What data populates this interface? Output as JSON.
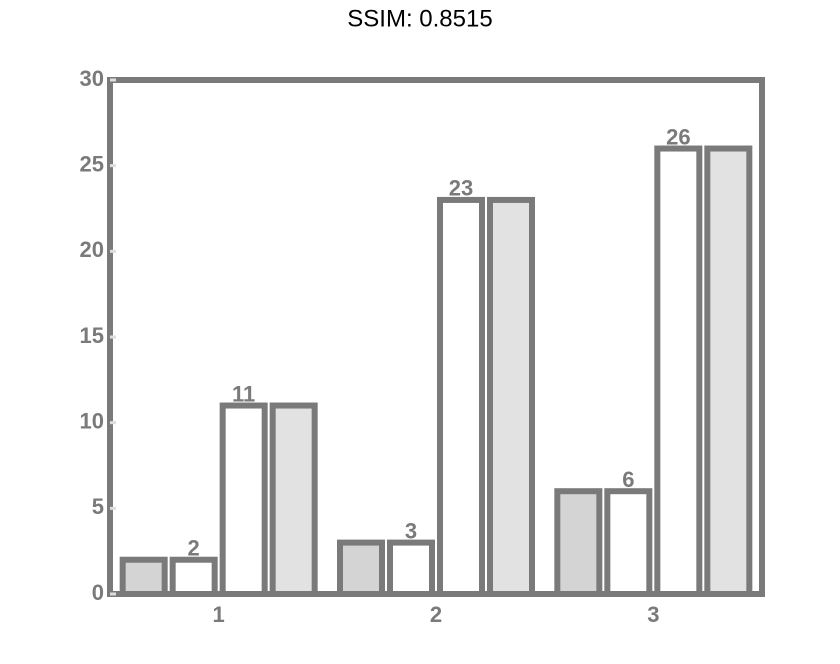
{
  "chart_data": {
    "type": "bar",
    "title": "SSIM: 0.8515",
    "categories": [
      "1",
      "2",
      "3"
    ],
    "series": [
      {
        "color": "#d4d4d4",
        "values": [
          2,
          3,
          6
        ]
      },
      {
        "color": "#ffffff",
        "values": [
          2,
          3,
          6
        ],
        "data_labels": true
      },
      {
        "color": "#ffffff",
        "values": [
          11,
          23,
          26
        ],
        "data_labels": true
      },
      {
        "color": "#e2e2e2",
        "values": [
          11,
          23,
          26
        ]
      }
    ],
    "ylim": [
      0,
      30
    ],
    "yticks": [
      0,
      5,
      10,
      15,
      20,
      25,
      30
    ]
  }
}
